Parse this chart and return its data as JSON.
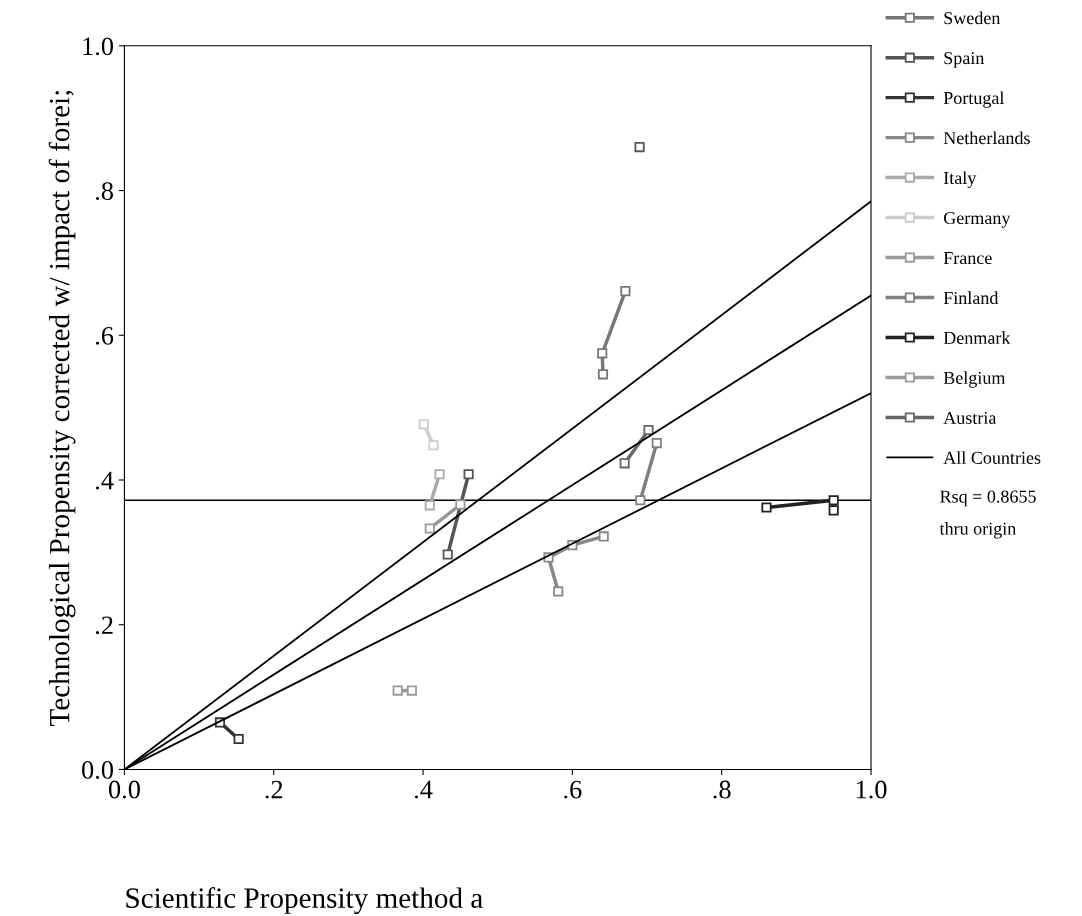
{
  "chart_data": {
    "type": "line",
    "xlabel": "Scientific Propensity method a",
    "ylabel": "Technological Propensity corrected w/ impact of forei;",
    "xlim": [
      0,
      1
    ],
    "ylim": [
      0,
      1
    ],
    "xticks": [
      {
        "value": 0,
        "label": "0.0"
      },
      {
        "value": 0.2,
        "label": ".2"
      },
      {
        "value": 0.4,
        "label": ".4"
      },
      {
        "value": 0.6,
        "label": ".6"
      },
      {
        "value": 0.8,
        "label": ".8"
      },
      {
        "value": 1,
        "label": "1.0"
      }
    ],
    "yticks": [
      {
        "value": 0,
        "label": "0.0"
      },
      {
        "value": 0.2,
        "label": ".2"
      },
      {
        "value": 0.4,
        "label": ".4"
      },
      {
        "value": 0.6,
        "label": ".6"
      },
      {
        "value": 0.8,
        "label": ".8"
      },
      {
        "value": 1,
        "label": "1.0"
      }
    ],
    "grid": false,
    "legend": "right",
    "marker": "square",
    "series": [
      {
        "name": "Sweden",
        "color": "#777777",
        "x": [
          0.671,
          0.64,
          0.641
        ],
        "values": [
          0.661,
          0.575,
          0.546
        ]
      },
      {
        "name": "Spain",
        "color": "#555555",
        "x": [
          0.461,
          0.433
        ],
        "values": [
          0.408,
          0.297
        ]
      },
      {
        "name": "Portugal",
        "color": "#333333",
        "x": [
          0.128,
          0.153
        ],
        "values": [
          0.065,
          0.042
        ]
      },
      {
        "name": "Netherlands",
        "color": "#888888",
        "x": [
          0.642,
          0.6,
          0.568,
          0.581
        ],
        "values": [
          0.322,
          0.31,
          0.293,
          0.246
        ]
      },
      {
        "name": "Italy",
        "color": "#aaaaaa",
        "x": [
          0.422,
          0.409
        ],
        "values": [
          0.408,
          0.365
        ]
      },
      {
        "name": "Germany",
        "color": "#cccccc",
        "x": [
          0.401,
          0.414
        ],
        "values": [
          0.477,
          0.448
        ]
      },
      {
        "name": "France",
        "color": "#999999",
        "x": [
          0.409,
          0.45
        ],
        "values": [
          0.333,
          0.366
        ]
      },
      {
        "name": "Finland",
        "color": "#808080",
        "x": [
          0.713,
          0.691
        ],
        "values": [
          0.451,
          0.372
        ]
      },
      {
        "name": "Denmark",
        "color": "#222222",
        "x": [
          0.86,
          0.95,
          0.95
        ],
        "values": [
          0.362,
          0.372,
          0.358
        ]
      },
      {
        "name": "Belgium",
        "color": "#9a9a9a",
        "x": [
          0.366,
          0.385
        ],
        "values": [
          0.109,
          0.109
        ]
      },
      {
        "name": "Austria",
        "color": "#666666",
        "x": [
          0.702,
          0.67
        ],
        "values": [
          0.469,
          0.423
        ]
      },
      {
        "type": "scatter",
        "color": "#555555",
        "x": [
          0.69
        ],
        "values": [
          0.86
        ]
      },
      {
        "marker": "none",
        "color": "#000000",
        "x": [
          0,
          1
        ],
        "values": [
          0,
          0.785
        ]
      },
      {
        "name": "All Countries",
        "marker": "none",
        "color": "#000000",
        "x": [
          0,
          1
        ],
        "values": [
          0,
          0.655
        ]
      },
      {
        "marker": "none",
        "color": "#000000",
        "x": [
          0,
          1
        ],
        "values": [
          0,
          0.52
        ]
      }
    ],
    "ref_lines": [
      {
        "axis": "y",
        "value": 0.372,
        "label": null,
        "color": "#000000"
      }
    ],
    "annotations": [
      "Rsq = 0.8655",
      "thru origin"
    ]
  }
}
